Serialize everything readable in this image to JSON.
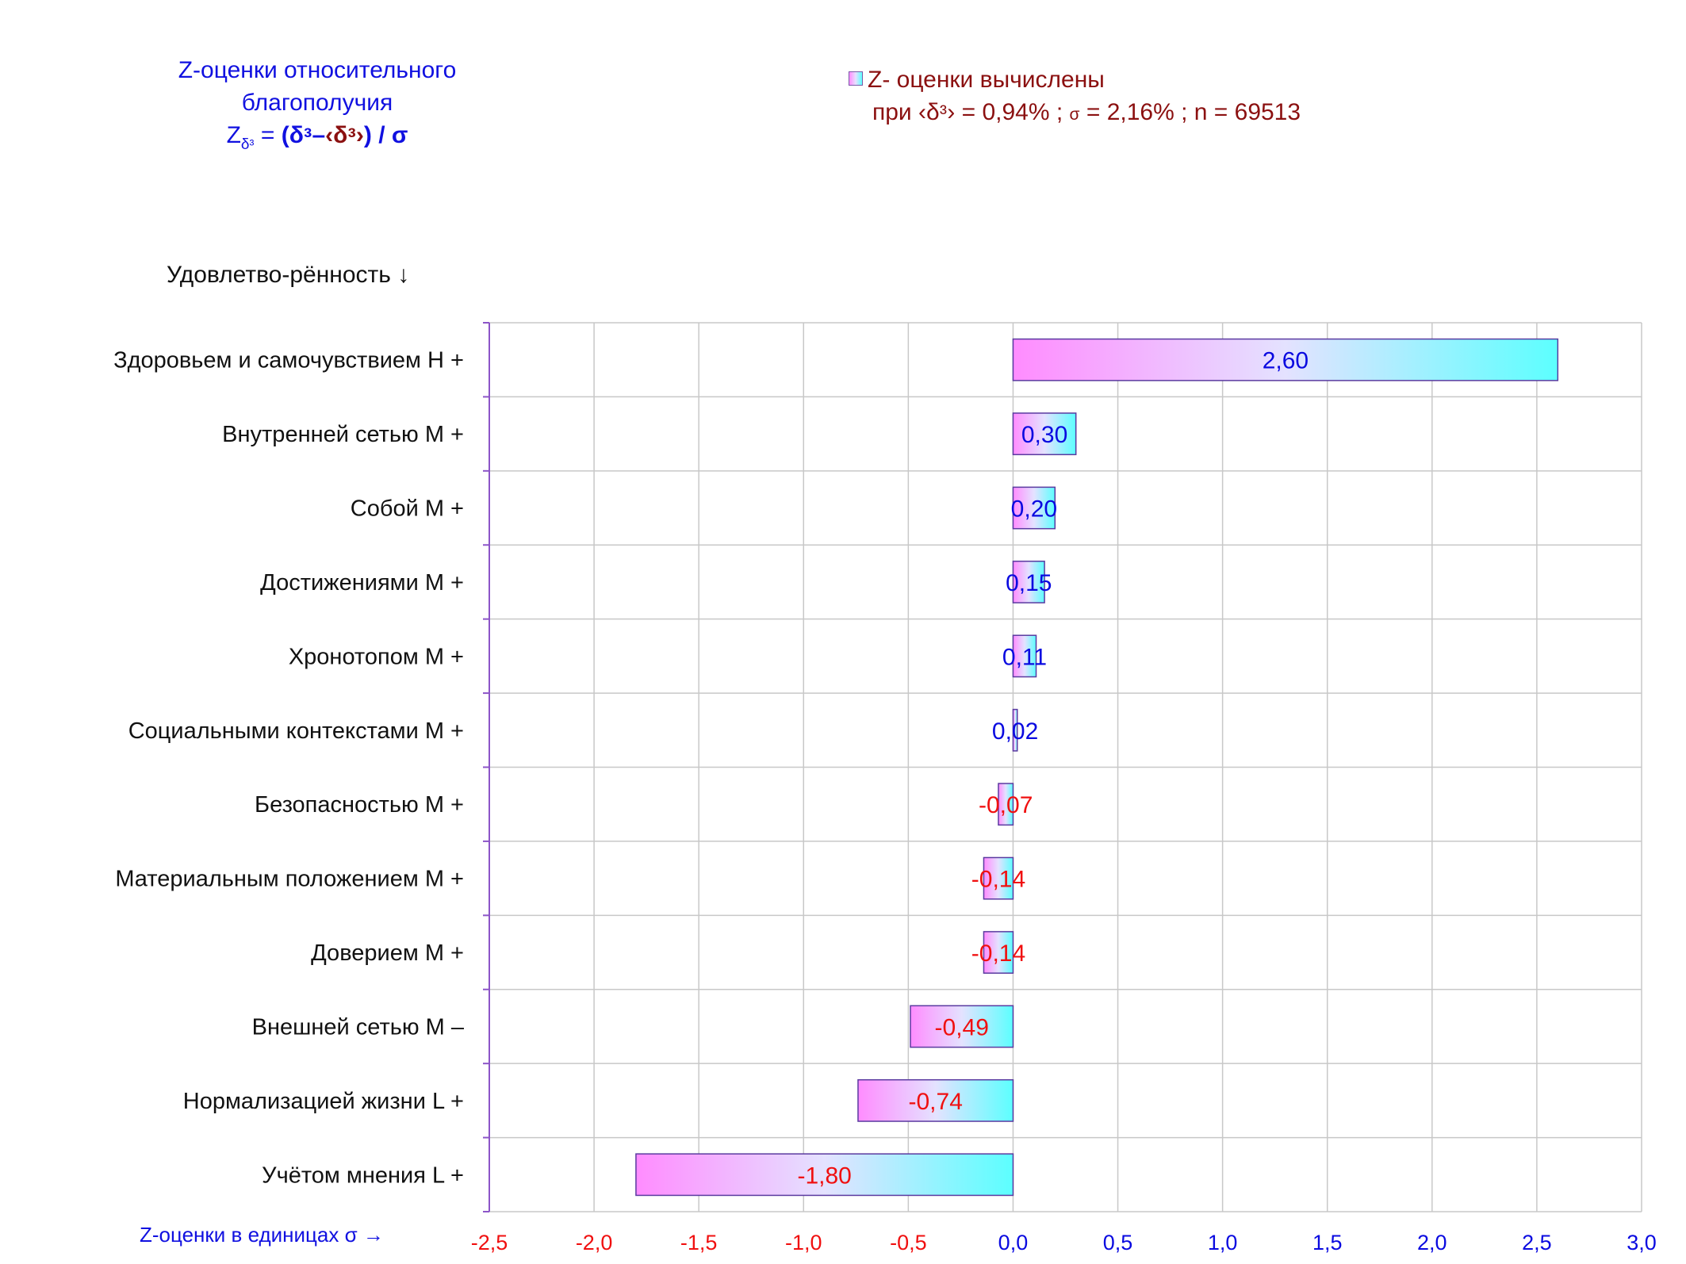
{
  "header": {
    "title_line1": "Z-оценки  относительного",
    "title_line2": "благополучия",
    "formula_z": "Z",
    "formula_sub": "δᶟ",
    "formula_eq": " = ",
    "formula_open": "(δᶟ–",
    "formula_mean": "‹δᶟ›",
    "formula_close": ")  / σ"
  },
  "legend": {
    "line1": "Z- оценки вычислены",
    "line2_a": "при ",
    "line2_mean": "‹δᶟ›",
    "line2_b": " = 0,94% ; ",
    "line2_sigma": "σ",
    "line2_c": " = 2,16% ; n = 69513"
  },
  "axis_heading": "Удовлетво-рённость ↓",
  "x_axis_title": "Z-оценки в единицах σ →",
  "colors": {
    "positive_label": "#0a0ae0",
    "negative_label": "#f01010",
    "grid": "#c8c8c8",
    "axis": "#8c55c8",
    "bar_left": "#ff8cff",
    "bar_mid": "#e4e2ff",
    "bar_right": "#5cffff",
    "bar_border": "#5a3aa0"
  },
  "chart_data": {
    "type": "bar",
    "orientation": "horizontal",
    "xlim": [
      -2.5,
      3.0
    ],
    "x_ticks": [
      "-2,5",
      "-2,0",
      "-1,5",
      "-1,0",
      "-0,5",
      "0,0",
      "0,5",
      "1,0",
      "1,5",
      "2,0",
      "2,5",
      "3,0"
    ],
    "grid": true,
    "categories": [
      "Здоровьем и самочувствием  H +",
      "Внутренней сетью  M +",
      "Собой  M +",
      "Достижениями  M +",
      "Хронотопом  M +",
      "Социальными контекстами  M +",
      "Безопасностью  M +",
      "Материальным положением  M +",
      "Доверием  M +",
      "Внешней сетью  M –",
      "Нормализацией жизни  L +",
      "Учётом мнения  L +"
    ],
    "values": [
      2.6,
      0.3,
      0.2,
      0.15,
      0.11,
      0.02,
      -0.07,
      -0.14,
      -0.14,
      -0.49,
      -0.74,
      -1.8
    ],
    "value_labels": [
      "2,60",
      "0,30",
      "0,20",
      "0,15",
      "0,11",
      "0,02",
      "-0,07",
      "-0,14",
      "-0,14",
      "-0,49",
      "-0,74",
      "-1,80"
    ]
  }
}
